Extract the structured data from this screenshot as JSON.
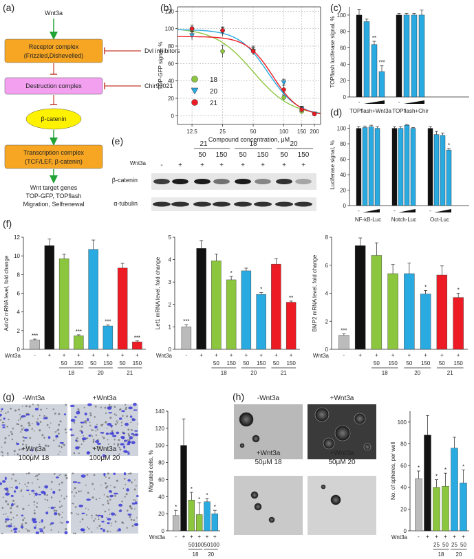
{
  "colors": {
    "green": "#8cc63f",
    "cyan": "#29aae1",
    "red": "#ed1c24",
    "black": "#111111",
    "gray": "#bbbbbb",
    "arrow_green": "#21a336",
    "inhibit_red": "#c0392b",
    "box_orange": "#f6a623",
    "box_pink": "#f3a0f0",
    "box_yellow": "#fff200"
  },
  "panel_a": {
    "label": "(a)",
    "wnt": "Wnt3a",
    "receptor_line1": "Receptor complex",
    "receptor_line2": "(Frizzled,Dishevelled)",
    "dvl_inhibitors": "Dvl inhibitors",
    "destruction": "Destruction complex",
    "chir": "Chir99021",
    "bcatenin": "β-catenin",
    "transcription_line1": "Transcription complex",
    "transcription_line2": "(TCF/LEF, β-catenin)",
    "targets": [
      "Wnt target genes",
      "TOP-GFP, TOPflash",
      "Migration, Selfrenewal"
    ]
  },
  "chart_data": [
    {
      "id": "b",
      "type": "scatter",
      "label": "(b)",
      "xlabel": "Compound concentration, μM",
      "ylabel": "TOP-GFP signal, %",
      "xscale": "log",
      "xticks": [
        12.5,
        25,
        50,
        100,
        150,
        200
      ],
      "xticklabels": [
        "12.5",
        "25",
        "50",
        "100",
        "150",
        "200"
      ],
      "ylim": [
        -10,
        125
      ],
      "yticks": [
        0,
        20,
        40,
        60,
        80,
        100,
        120
      ],
      "legend_position": "center-left",
      "series": [
        {
          "name": "18",
          "color_key": "green",
          "marker": "circle",
          "x": [
            12.5,
            25,
            50,
            100,
            150,
            200
          ],
          "y": [
            98,
            74,
            75,
            21,
            5,
            2
          ],
          "err": [
            4,
            7,
            5,
            3,
            2,
            1
          ],
          "ic50": 50,
          "top": 101,
          "hill": 2.3
        },
        {
          "name": "20",
          "color_key": "cyan",
          "marker": "triangle",
          "x": [
            12.5,
            25,
            50,
            100,
            150,
            200
          ],
          "y": [
            92,
            96,
            74,
            38,
            8,
            2
          ],
          "err": [
            5,
            5,
            4,
            4,
            3,
            1
          ],
          "ic50": 70,
          "top": 99,
          "hill": 3.0
        },
        {
          "name": "21",
          "color_key": "red",
          "marker": "circle",
          "x": [
            12.5,
            25,
            50,
            100,
            150,
            200
          ],
          "y": [
            100,
            98,
            74,
            30,
            7,
            2
          ],
          "err": [
            4,
            4,
            4,
            5,
            3,
            1
          ],
          "ic50": 78,
          "top": 91,
          "hill": 3.4
        }
      ]
    },
    {
      "id": "c",
      "type": "bar",
      "label": "(c)",
      "ylabel": "TOPflash luciferase signal, %",
      "ylim": [
        0,
        110
      ],
      "yticks": [
        0,
        20,
        40,
        60,
        80,
        100
      ],
      "groups": [
        {
          "name": "TOPflash+Wnt3a",
          "values": [
            100,
            92,
            64,
            31
          ],
          "err": [
            7,
            3,
            4,
            7
          ],
          "sig": [
            "",
            "",
            "**",
            "***"
          ]
        },
        {
          "name": "TOPflash+Chir",
          "values": [
            100,
            100,
            100,
            100
          ],
          "err": [
            2,
            2,
            2,
            6
          ],
          "sig": [
            "",
            "",
            "",
            ""
          ]
        }
      ],
      "dash": "-"
    },
    {
      "id": "d",
      "type": "bar",
      "label": "(d)",
      "ylabel": "Luciferase signal, %",
      "ylim": [
        0,
        105
      ],
      "yticks": [
        0,
        20,
        40,
        60,
        80,
        100
      ],
      "groups": [
        {
          "name": "NF-kB-Luc",
          "values": [
            100,
            101,
            102,
            100
          ],
          "err": [
            2,
            2,
            2,
            2
          ],
          "sig": [
            "",
            "",
            "",
            ""
          ]
        },
        {
          "name": "Notch-Luc",
          "values": [
            100,
            100,
            104,
            100
          ],
          "err": [
            2,
            2,
            1,
            1
          ],
          "sig": [
            "",
            "",
            "",
            ""
          ]
        },
        {
          "name": "Oct-Luc",
          "values": [
            100,
            92,
            91,
            72
          ],
          "err": [
            2,
            4,
            3,
            2
          ],
          "sig": [
            "",
            "",
            "",
            "*"
          ]
        }
      ],
      "dash": "-"
    },
    {
      "id": "f1",
      "type": "bar",
      "label": "(f)",
      "ylabel": "Axin2 mRNA level, fold change",
      "ylim": [
        0,
        12
      ],
      "yticks": [
        0,
        2,
        4,
        6,
        8,
        10,
        12
      ],
      "values": [
        1.0,
        11.1,
        9.7,
        1.45,
        10.7,
        2.5,
        8.7,
        0.8
      ],
      "err": [
        0.1,
        0.7,
        0.5,
        0.1,
        1.0,
        0.1,
        0.5,
        0.1
      ],
      "sig": [
        "***",
        "",
        "",
        "***",
        "",
        "***",
        "",
        "***"
      ],
      "color_keys": [
        "gray",
        "black",
        "green",
        "green",
        "cyan",
        "cyan",
        "red",
        "red"
      ]
    },
    {
      "id": "f2",
      "type": "bar",
      "ylabel": "Lef1 mRNA level, fold change",
      "ylim": [
        0,
        5
      ],
      "yticks": [
        0,
        1,
        2,
        3,
        4,
        5
      ],
      "values": [
        1.0,
        4.5,
        3.95,
        3.1,
        3.5,
        2.45,
        3.8,
        2.1
      ],
      "err": [
        0.1,
        0.35,
        0.3,
        0.15,
        0.12,
        0.08,
        0.25,
        0.05
      ],
      "sig": [
        "***",
        "",
        "",
        "*",
        "",
        "*",
        "",
        "**"
      ],
      "color_keys": [
        "gray",
        "black",
        "green",
        "green",
        "cyan",
        "cyan",
        "red",
        "red"
      ]
    },
    {
      "id": "f3",
      "type": "bar",
      "ylabel": "BMP2 mRNA level, fold change",
      "ylim": [
        0,
        8
      ],
      "yticks": [
        0,
        2,
        4,
        6,
        8
      ],
      "values": [
        1.0,
        7.4,
        6.7,
        5.4,
        5.4,
        3.95,
        5.3,
        3.7
      ],
      "err": [
        0.1,
        0.55,
        0.9,
        0.65,
        0.75,
        0.25,
        0.65,
        0.3
      ],
      "sig": [
        "***",
        "",
        "",
        "",
        "",
        "*",
        "",
        "*"
      ],
      "color_keys": [
        "gray",
        "black",
        "green",
        "green",
        "cyan",
        "cyan",
        "red",
        "red"
      ]
    },
    {
      "id": "g",
      "type": "bar",
      "ylabel": "Migrated cells, %",
      "ylim": [
        0,
        140
      ],
      "yticks": [
        0,
        20,
        40,
        60,
        80,
        100,
        120,
        140
      ],
      "values": [
        18,
        100,
        36,
        19,
        34,
        20
      ],
      "err": [
        6,
        31,
        9,
        14,
        4,
        4
      ],
      "sig": [
        "*",
        "",
        "*",
        "*",
        "*",
        "*"
      ],
      "color_keys": [
        "gray",
        "black",
        "green",
        "green",
        "cyan",
        "cyan"
      ]
    },
    {
      "id": "h",
      "type": "bar",
      "ylabel": "No. of spheres, per well",
      "ylim": [
        0,
        110
      ],
      "yticks": [
        0,
        20,
        40,
        60,
        80,
        100
      ],
      "values": [
        48,
        88,
        40,
        41,
        76,
        44
      ],
      "err": [
        7,
        18,
        7,
        12,
        10,
        12
      ],
      "sig": [
        "*",
        "",
        "*",
        "*",
        "",
        "*"
      ],
      "color_keys": [
        "gray",
        "black",
        "green",
        "green",
        "cyan",
        "cyan"
      ]
    }
  ],
  "panel_f_axis": {
    "wnt_label": "Wnt3a",
    "wnt_row": [
      "-",
      "+",
      "+",
      "+",
      "+",
      "+",
      "+",
      "+"
    ],
    "dose_row": [
      "",
      "",
      "50",
      "150",
      "50",
      "150",
      "50",
      "150"
    ],
    "compounds": [
      "18",
      "20",
      "21"
    ]
  },
  "panel_g_axis": {
    "wnt_label": "Wnt3a",
    "wnt_row": [
      "-",
      "+",
      "+",
      "+",
      "+",
      "+"
    ],
    "dose_row": [
      "",
      "",
      "50",
      "100",
      "50",
      "100"
    ],
    "compounds": [
      "18",
      "20"
    ]
  },
  "panel_h_axis": {
    "wnt_label": "Wnt3a",
    "wnt_row": [
      "-",
      "+",
      "+",
      "+",
      "+",
      "+"
    ],
    "dose_row": [
      "",
      "",
      "25",
      "50",
      "25",
      "50"
    ],
    "compounds": [
      "18",
      "20"
    ]
  },
  "panel_e": {
    "label": "(e)",
    "wnt_label": "Wnt3a",
    "wnt_row": [
      "-",
      "+",
      "+",
      "+",
      "+",
      "+",
      "+",
      "+"
    ],
    "compounds": [
      "21",
      "18",
      "20"
    ],
    "doses": [
      "50",
      "150",
      "50",
      "150",
      "50",
      "150"
    ],
    "row1": "β-catenin",
    "row2": "α-tubulin",
    "bcat_intensity": [
      0.8,
      0.95,
      0.95,
      0.55,
      0.95,
      0.45,
      0.85,
      0.3
    ],
    "tub_intensity": [
      0.85,
      0.85,
      0.85,
      0.85,
      0.85,
      0.85,
      0.85,
      0.85
    ]
  },
  "panel_g_images": {
    "label": "(g)",
    "captions": [
      "-Wnt3a",
      "+Wnt3a",
      "+Wnt3a",
      "+Wnt3a"
    ],
    "subcaptions": [
      "",
      "",
      "100μM 18",
      "100μM 20"
    ],
    "blue_density": [
      0.25,
      0.8,
      0.55,
      0.45
    ]
  },
  "panel_h_images": {
    "label": "(h)",
    "captions": [
      "-Wnt3a",
      "+Wnt3a",
      "+Wnt3a",
      "+Wnt3a"
    ],
    "subcaptions": [
      "",
      "",
      "50μM 18",
      "50μM 20"
    ]
  }
}
